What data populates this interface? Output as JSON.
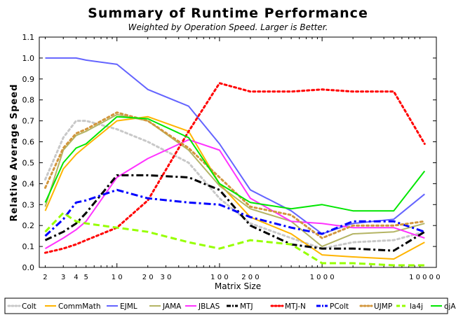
{
  "chart_data": {
    "type": "line",
    "title": "Summary of Runtime Performance",
    "subtitle": "Weighted by Operation Speed. Larger is Better.",
    "xlabel": "Matrix Size",
    "ylabel": "Relative Average Speed",
    "x_scale": "log",
    "xlim": [
      1.75,
      13000
    ],
    "ylim": [
      0,
      1.1
    ],
    "x_ticks": [
      2,
      3,
      4,
      5,
      10,
      20,
      30,
      100,
      200,
      1000,
      10000
    ],
    "x_tick_labels": [
      "2",
      "3",
      "4",
      "5",
      "1 0",
      "2 0",
      "3 0",
      "1 0 0",
      "2 0 0",
      "1 0 0 0",
      "1 0 0 0 0"
    ],
    "y_ticks": [
      0,
      0.1,
      0.2,
      0.3,
      0.4,
      0.5,
      0.6,
      0.7,
      0.8,
      0.9,
      1.0,
      1.1
    ],
    "y_tick_labels": [
      "0.0",
      "0.1",
      "0.2",
      "0.3",
      "0.4",
      "0.5",
      "0.6",
      "0.7",
      "0.8",
      "0.9",
      "1.0",
      "1.1"
    ],
    "grid": false,
    "legend_position": "bottom",
    "x": [
      2,
      3,
      4,
      5,
      10,
      20,
      50,
      100,
      200,
      500,
      1000,
      2000,
      5000,
      10000
    ],
    "series": [
      {
        "name": "Colt",
        "color": "#c8c8c8",
        "dash": "dot",
        "values": [
          0.42,
          0.62,
          0.7,
          0.7,
          0.66,
          0.6,
          0.5,
          0.33,
          0.21,
          0.14,
          0.09,
          0.12,
          0.13,
          0.17
        ]
      },
      {
        "name": "CommMath",
        "color": "#ffb400",
        "dash": "solid",
        "values": [
          0.27,
          0.47,
          0.54,
          0.58,
          0.7,
          0.72,
          0.65,
          0.4,
          0.24,
          0.16,
          0.06,
          0.05,
          0.04,
          0.12
        ]
      },
      {
        "name": "EJML",
        "color": "#6464ff",
        "dash": "solid",
        "values": [
          1.0,
          1.0,
          1.0,
          0.99,
          0.97,
          0.85,
          0.77,
          0.59,
          0.37,
          0.27,
          0.16,
          0.21,
          0.23,
          0.35
        ]
      },
      {
        "name": "JAMA",
        "color": "#b4b464",
        "dash": "solid",
        "values": [
          0.29,
          0.56,
          0.63,
          0.65,
          0.73,
          0.7,
          0.56,
          0.39,
          0.28,
          0.22,
          0.1,
          0.16,
          0.17,
          0.21
        ]
      },
      {
        "name": "JBLAS",
        "color": "#ff32ff",
        "dash": "solid",
        "values": [
          0.09,
          0.14,
          0.18,
          0.22,
          0.43,
          0.52,
          0.61,
          0.56,
          0.33,
          0.22,
          0.21,
          0.19,
          0.19,
          0.14
        ]
      },
      {
        "name": "MTJ",
        "color": "#000000",
        "dash": "dashdot",
        "values": [
          0.13,
          0.17,
          0.21,
          0.26,
          0.44,
          0.44,
          0.43,
          0.37,
          0.2,
          0.11,
          0.09,
          0.09,
          0.08,
          0.17
        ]
      },
      {
        "name": "MTJ-N",
        "color": "#ff0000",
        "dash": "dot",
        "values": [
          0.07,
          0.09,
          0.11,
          0.13,
          0.19,
          0.32,
          0.65,
          0.88,
          0.84,
          0.84,
          0.85,
          0.84,
          0.84,
          0.59
        ]
      },
      {
        "name": "PColt",
        "color": "#0000ff",
        "dash": "dashdot",
        "values": [
          0.15,
          0.23,
          0.31,
          0.32,
          0.37,
          0.33,
          0.31,
          0.3,
          0.24,
          0.19,
          0.16,
          0.22,
          0.22,
          0.17
        ]
      },
      {
        "name": "UJMP",
        "color": "#d2963c",
        "dash": "dot",
        "values": [
          0.38,
          0.57,
          0.64,
          0.66,
          0.74,
          0.7,
          0.57,
          0.43,
          0.29,
          0.25,
          0.14,
          0.2,
          0.2,
          0.22
        ]
      },
      {
        "name": "la4j",
        "color": "#96ff00",
        "dash": "dash",
        "values": [
          0.17,
          0.26,
          0.22,
          0.21,
          0.19,
          0.17,
          0.12,
          0.09,
          0.13,
          0.11,
          0.02,
          0.02,
          0.01,
          0.01
        ]
      },
      {
        "name": "ojAlgo",
        "color": "#00e600",
        "dash": "solid",
        "values": [
          0.31,
          0.5,
          0.57,
          0.59,
          0.72,
          0.71,
          0.62,
          0.4,
          0.31,
          0.28,
          0.3,
          0.27,
          0.27,
          0.46
        ]
      }
    ]
  }
}
